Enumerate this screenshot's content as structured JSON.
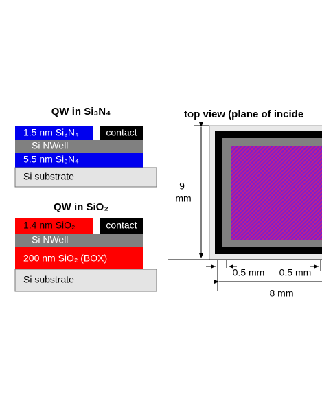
{
  "left_top": {
    "title": "QW in Si₃N₄",
    "layers": [
      "1.5 nm Si₃N₄",
      "contact",
      "Si NWell",
      "5.5 nm Si₃N₄",
      "Si substrate"
    ]
  },
  "left_bottom": {
    "title": "QW in SiO₂",
    "layers": [
      "1.4 nm SiO₂",
      "contact",
      "Si NWell",
      "200 nm SiO₂ (BOX)",
      "Si substrate"
    ]
  },
  "top_view": {
    "title": "top view (plane of incide",
    "height_value": "9",
    "height_unit": "mm",
    "border_left": "0.5 mm",
    "border_right": "0.5 mm",
    "width": "8 mm"
  }
}
